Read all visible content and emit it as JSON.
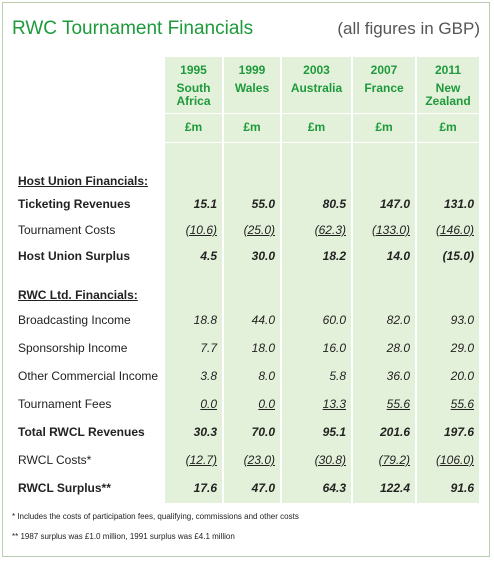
{
  "header": {
    "title": "RWC Tournament Financials",
    "subtitle": "(all figures in GBP)"
  },
  "columns": [
    {
      "year": "1995",
      "host": "South Africa",
      "unit": "£m"
    },
    {
      "year": "1999",
      "host": "Wales",
      "unit": "£m"
    },
    {
      "year": "2003",
      "host": "Australia",
      "unit": "£m"
    },
    {
      "year": "2007",
      "host": "France",
      "unit": "£m"
    },
    {
      "year": "2011",
      "host": "New Zealand",
      "unit": "£m"
    }
  ],
  "rows": [
    {
      "label": "Host Union Financials:"
    },
    {
      "label": "Ticketing Revenues",
      "values": [
        "15.1",
        "55.0",
        "80.5",
        "147.0",
        "131.0"
      ]
    },
    {
      "label": "Tournament Costs",
      "values": [
        "(10.6)",
        "(25.0)",
        "(62.3)",
        "(133.0)",
        "(146.0)"
      ]
    },
    {
      "label": "Host Union Surplus",
      "values": [
        "4.5",
        "30.0",
        "18.2",
        "14.0",
        "(15.0)"
      ]
    },
    {
      "label": "RWC Ltd. Financials:"
    },
    {
      "label": "Broadcasting Income",
      "values": [
        "18.8",
        "44.0",
        "60.0",
        "82.0",
        "93.0"
      ]
    },
    {
      "label": "Sponsorship Income",
      "values": [
        "7.7",
        "18.0",
        "16.0",
        "28.0",
        "29.0"
      ]
    },
    {
      "label": "Other Commercial Income",
      "values": [
        "3.8",
        "8.0",
        "5.8",
        "36.0",
        "20.0"
      ]
    },
    {
      "label": "Tournament Fees",
      "values": [
        "0.0",
        "0.0",
        "13.3",
        "55.6",
        "55.6"
      ]
    },
    {
      "label": "Total RWCL Revenues",
      "values": [
        "30.3",
        "70.0",
        "95.1",
        "201.6",
        "197.6"
      ]
    },
    {
      "label": "RWCL Costs*",
      "values": [
        "(12.7)",
        "(23.0)",
        "(30.8)",
        "(79.2)",
        "(106.0)"
      ]
    },
    {
      "label": "RWCL Surplus**",
      "values": [
        "17.6",
        "47.0",
        "64.3",
        "122.4",
        "91.6"
      ]
    }
  ],
  "footnotes": [
    "* Includes the costs of participation fees, qualifying, commissions and other costs",
    "** 1987 surplus was £1.0 million, 1991 surplus was £4.1 million"
  ]
}
